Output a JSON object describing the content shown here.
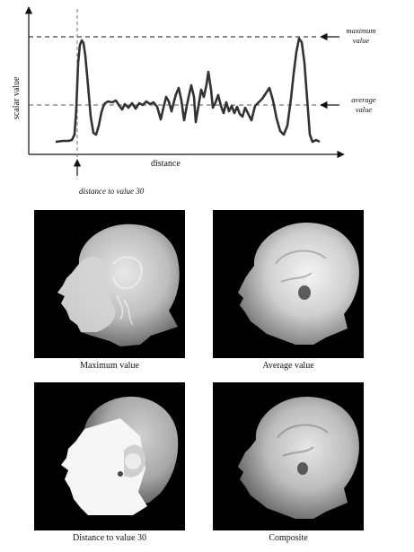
{
  "diagram": {
    "y_axis_label": "scalar value",
    "x_axis_label": "distance",
    "max_label_line1": "maximum",
    "max_label_line2": "value",
    "avg_label_line1": "average",
    "avg_label_line2": "value",
    "threshold_label": "distance to value 30"
  },
  "panels": [
    {
      "caption": "Maximum value"
    },
    {
      "caption": "Average value"
    },
    {
      "caption": "Distance to value 30"
    },
    {
      "caption": "Composite"
    }
  ],
  "colors": {
    "curve": "#333333",
    "background": "#ffffff",
    "image_background": "#000000"
  }
}
